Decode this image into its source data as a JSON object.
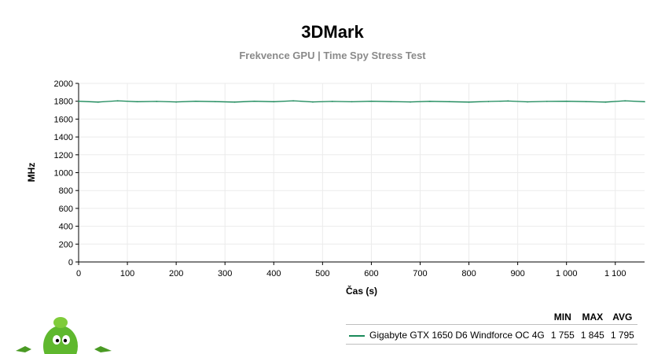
{
  "title": "3DMark",
  "subtitle": "Frekvence GPU | Time Spy Stress Test",
  "colors": {
    "series": "#1a8a5a",
    "grid": "#ebebeb",
    "axis": "#000000"
  },
  "chart_data": {
    "type": "line",
    "xlabel": "Čas (s)",
    "ylabel": "MHz",
    "xlim": [
      0,
      1160
    ],
    "ylim": [
      0,
      2000
    ],
    "x_ticks": [
      0,
      100,
      200,
      300,
      400,
      500,
      600,
      700,
      800,
      900,
      1000,
      1100
    ],
    "x_tick_labels": [
      "0",
      "100",
      "200",
      "300",
      "400",
      "500",
      "600",
      "700",
      "800",
      "900",
      "1 000",
      "1 100"
    ],
    "y_ticks": [
      0,
      200,
      400,
      600,
      800,
      1000,
      1200,
      1400,
      1600,
      1800,
      2000
    ],
    "y_tick_labels": [
      "0",
      "200",
      "400",
      "600",
      "800",
      "1000",
      "1200",
      "1400",
      "1600",
      "1800",
      "2000"
    ],
    "grid": true,
    "series": [
      {
        "name": "Gigabyte GTX 1650 D6 Windforce OC 4G",
        "color": "#1a8a5a",
        "x": [
          0,
          40,
          80,
          120,
          160,
          200,
          240,
          280,
          320,
          360,
          400,
          440,
          480,
          520,
          560,
          600,
          640,
          680,
          720,
          760,
          800,
          840,
          880,
          920,
          960,
          1000,
          1040,
          1080,
          1120,
          1160
        ],
        "y": [
          1800,
          1790,
          1805,
          1795,
          1798,
          1792,
          1800,
          1796,
          1790,
          1800,
          1795,
          1805,
          1792,
          1798,
          1794,
          1800,
          1796,
          1792,
          1799,
          1795,
          1790,
          1797,
          1803,
          1793,
          1798,
          1800,
          1796,
          1790,
          1805,
          1795
        ],
        "min": 1755,
        "max": 1845,
        "avg": 1795
      }
    ],
    "legend": {
      "placement": "bottom-right",
      "headers": [
        "MIN",
        "MAX",
        "AVG"
      ],
      "rows": [
        {
          "name": "Gigabyte GTX 1650 D6 Windforce OC 4G",
          "min": "1 755",
          "max": "1 845",
          "avg": "1 795"
        }
      ]
    }
  }
}
